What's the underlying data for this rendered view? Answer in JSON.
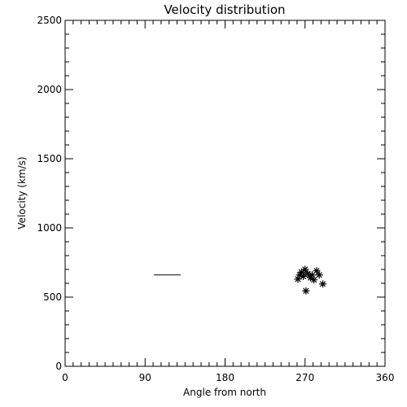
{
  "chart_data": {
    "type": "scatter",
    "title": "Velocity distribution",
    "xlabel": "Angle from north",
    "ylabel": "Velocity (km/s)",
    "xlim": [
      0,
      360
    ],
    "ylim": [
      0,
      2500
    ],
    "xticks": [
      0,
      90,
      180,
      270,
      360
    ],
    "yticks": [
      0,
      500,
      1000,
      1500,
      2000,
      2500
    ],
    "grid": false,
    "marker": "asterisk",
    "color": "#000000",
    "series": [
      {
        "points": [
          {
            "x": 262,
            "y": 630
          },
          {
            "x": 264,
            "y": 660
          },
          {
            "x": 266,
            "y": 680
          },
          {
            "x": 268,
            "y": 650
          },
          {
            "x": 270,
            "y": 700
          },
          {
            "x": 271,
            "y": 545
          },
          {
            "x": 273,
            "y": 670
          },
          {
            "x": 276,
            "y": 640
          },
          {
            "x": 278,
            "y": 660
          },
          {
            "x": 280,
            "y": 625
          },
          {
            "x": 283,
            "y": 690
          },
          {
            "x": 286,
            "y": 660
          },
          {
            "x": 290,
            "y": 595
          }
        ]
      }
    ],
    "segments": [
      {
        "x1": 100,
        "x2": 130,
        "y": 660
      }
    ]
  }
}
